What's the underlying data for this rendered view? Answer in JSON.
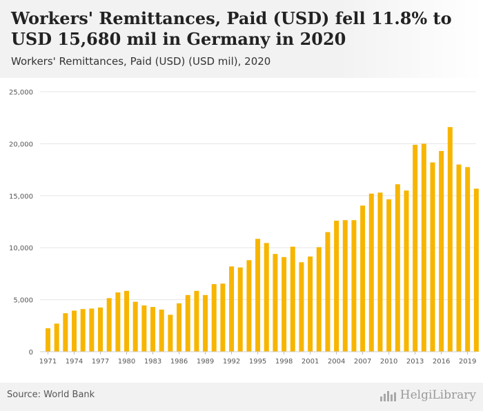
{
  "header": {
    "title": "Workers' Remittances, Paid (USD) fell 11.8% to USD 15,680 mil in Germany in 2020",
    "subtitle": "Workers' Remittances, Paid (USD) (USD mil), 2020"
  },
  "footer": {
    "source": "Source: World Bank",
    "logo_text": "HelgiLibrary",
    "logo_icon": "bar-chart-icon"
  },
  "colors": {
    "bar": "#F7B500",
    "grid": "#e5e5e5",
    "axis_text": "#555555"
  },
  "chart_data": {
    "type": "bar",
    "categories": [
      1971,
      1972,
      1973,
      1974,
      1975,
      1976,
      1977,
      1978,
      1979,
      1980,
      1981,
      1982,
      1983,
      1984,
      1985,
      1986,
      1987,
      1988,
      1989,
      1990,
      1991,
      1992,
      1993,
      1994,
      1995,
      1996,
      1997,
      1998,
      1999,
      2000,
      2001,
      2002,
      2003,
      2004,
      2005,
      2006,
      2007,
      2008,
      2009,
      2010,
      2011,
      2012,
      2013,
      2014,
      2015,
      2016,
      2017,
      2018,
      2019,
      2020
    ],
    "values": [
      2250,
      2700,
      3700,
      3950,
      4100,
      4150,
      4250,
      5150,
      5700,
      5850,
      4800,
      4450,
      4300,
      4050,
      3550,
      4650,
      5450,
      5850,
      5450,
      6500,
      6550,
      8200,
      8100,
      8800,
      10850,
      10450,
      9400,
      9100,
      10100,
      8600,
      9150,
      10050,
      11500,
      12600,
      12650,
      12650,
      14050,
      15200,
      15300,
      14650,
      16100,
      15500,
      19900,
      20000,
      18200,
      19300,
      21600,
      18000,
      17750,
      15680
    ],
    "xtick_labels": [
      "1971",
      "1974",
      "1977",
      "1980",
      "1983",
      "1986",
      "1989",
      "1992",
      "1995",
      "1998",
      "2001",
      "2004",
      "2007",
      "2010",
      "2013",
      "2016",
      "2019"
    ],
    "ytick_labels": [
      "0",
      "5,000",
      "10,000",
      "15,000",
      "20,000",
      "25,000"
    ],
    "ylim": [
      0,
      25000
    ],
    "grid": true
  }
}
